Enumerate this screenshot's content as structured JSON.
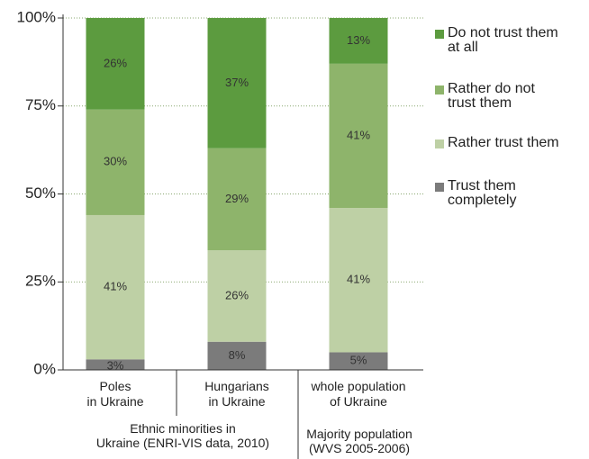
{
  "chart_data": {
    "type": "stacked_bar",
    "categories": [
      "Poles\nin Ukraine",
      "Hungarians\nin Ukraine",
      "whole population\nof Ukraine"
    ],
    "groups": [
      "Ethnic minorities in\nUkraine (ENRI-VIS data, 2010)",
      "Majority population\n(WVS 2005-2006)"
    ],
    "series": [
      {
        "name": "Trust them\ncompletely",
        "color": "#7b7b7b",
        "values": [
          3,
          8,
          5
        ],
        "value_labels": [
          "3%",
          "8%",
          "5%"
        ]
      },
      {
        "name": "Rather trust them",
        "color": "#bed0a5",
        "values": [
          41,
          26,
          41
        ],
        "value_labels": [
          "41%",
          "26%",
          "41%"
        ]
      },
      {
        "name": "Rather do not\ntrust them",
        "color": "#8eb46b",
        "values": [
          30,
          29,
          41
        ],
        "value_labels": [
          "30%",
          "29%",
          "41%"
        ]
      },
      {
        "name": "Do not trust them\nat all",
        "color": "#5c9b3f",
        "values": [
          26,
          37,
          13
        ],
        "value_labels": [
          "26%",
          "37%",
          "13%"
        ]
      }
    ],
    "ylim": [
      0,
      100
    ],
    "yticks": [
      {
        "value": 0,
        "label": "0%"
      },
      {
        "value": 25,
        "label": "25%"
      },
      {
        "value": 50,
        "label": "50%"
      },
      {
        "value": 75,
        "label": "75%"
      },
      {
        "value": 100,
        "label": "100%"
      }
    ],
    "grid": true
  }
}
